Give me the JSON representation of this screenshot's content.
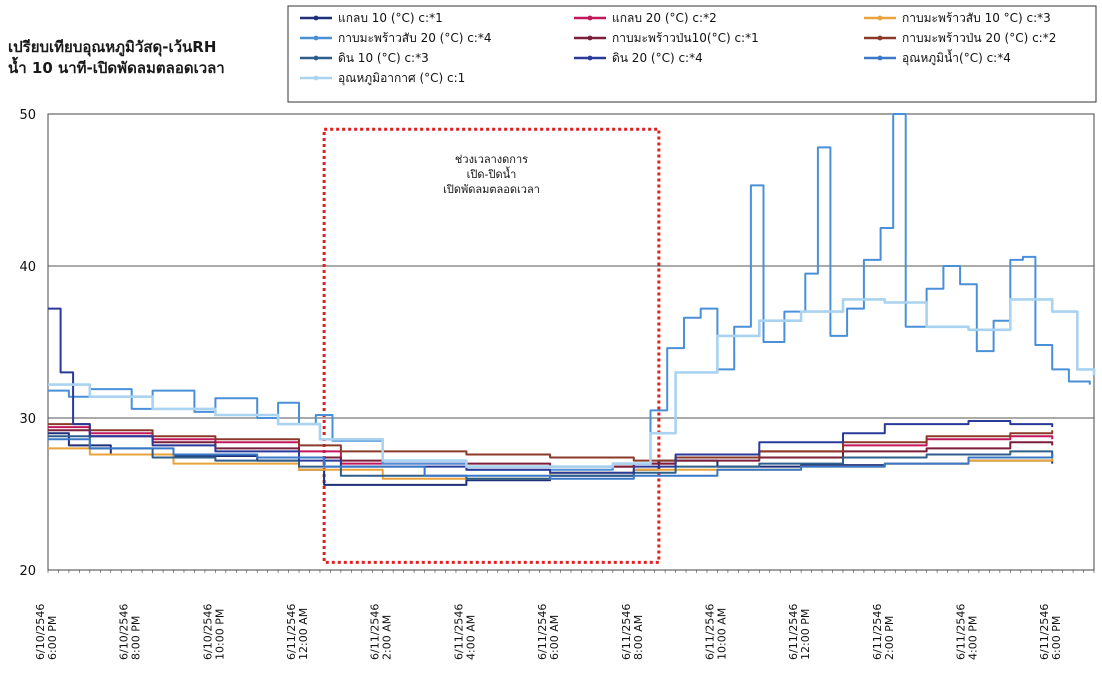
{
  "chart_data": {
    "type": "line",
    "title": [
      "เปรียบเทียบอุณหภูมิวัสดุ-เว้นRH",
      "น้ำ 10 นาที-เปิดพัดลมตลอดเวลา"
    ],
    "ylim": [
      20,
      50
    ],
    "yticks": [
      20,
      30,
      40,
      50
    ],
    "grid": "horizontal",
    "legend_placement": "top",
    "x_labels": [
      [
        "6/10/2546",
        "6:00 PM"
      ],
      [
        "6/10/2546",
        "8:00 PM"
      ],
      [
        "6/10/2546",
        "10:00 PM"
      ],
      [
        "6/11/2546",
        "12:00 AM"
      ],
      [
        "6/11/2546",
        "2:00 AM"
      ],
      [
        "6/11/2546",
        "4:00 AM"
      ],
      [
        "6/11/2546",
        "6:00 AM"
      ],
      [
        "6/11/2546",
        "8:00 AM"
      ],
      [
        "6/11/2546",
        "10:00 AM"
      ],
      [
        "6/11/2546",
        "12:00 PM"
      ],
      [
        "6/11/2546",
        "2:00 PM"
      ],
      [
        "6/11/2546",
        "4:00 PM"
      ],
      [
        "6/11/2546",
        "6:00 PM"
      ]
    ],
    "x_hours": [
      0,
      2,
      4,
      6,
      8,
      10,
      12,
      14,
      16,
      18,
      20,
      22,
      24
    ],
    "annotation": {
      "text": [
        "ช่วงเวลางดการ",
        "เปิด-ปิดน้ำ",
        "เปิดพัดลมตลอดเวลา"
      ],
      "x_range": [
        6.6,
        14.6
      ],
      "y_range": [
        20.5,
        49
      ],
      "color": "#e02020"
    },
    "series": [
      {
        "name": "แกลบ 10 (°C) c:*1",
        "color": "#1f2f7a",
        "points": [
          [
            0,
            29.0
          ],
          [
            0.5,
            28.2
          ],
          [
            1.5,
            27.6
          ],
          [
            3,
            27.5
          ],
          [
            5,
            27.2
          ],
          [
            6,
            26.6
          ],
          [
            6.6,
            25.6
          ],
          [
            8,
            25.6
          ],
          [
            10,
            25.9
          ],
          [
            12,
            26.2
          ],
          [
            14,
            26.6
          ],
          [
            14.6,
            27.2
          ],
          [
            16,
            26.8
          ],
          [
            18,
            26.9
          ],
          [
            20,
            27.0
          ],
          [
            22,
            27.2
          ],
          [
            24,
            27.0
          ]
        ]
      },
      {
        "name": "แกลบ 20 (°C) c:*2",
        "color": "#c2185b",
        "points": [
          [
            0,
            29.4
          ],
          [
            1,
            29.0
          ],
          [
            2.5,
            28.6
          ],
          [
            4,
            28.4
          ],
          [
            6,
            27.8
          ],
          [
            7,
            27.0
          ],
          [
            10,
            26.8
          ],
          [
            12,
            26.8
          ],
          [
            14,
            27.0
          ],
          [
            15,
            27.4
          ],
          [
            17,
            27.8
          ],
          [
            19,
            28.2
          ],
          [
            21,
            28.6
          ],
          [
            23,
            28.8
          ],
          [
            24,
            28.6
          ]
        ]
      },
      {
        "name": "กาบมะพร้าวสับ 10 °C) c:*3",
        "color": "#e8a33a",
        "points": [
          [
            0,
            28.0
          ],
          [
            1,
            27.6
          ],
          [
            3,
            27.0
          ],
          [
            5,
            27.0
          ],
          [
            6,
            26.6
          ],
          [
            8,
            26.0
          ],
          [
            10,
            26.0
          ],
          [
            12,
            26.4
          ],
          [
            14,
            26.6
          ],
          [
            16,
            26.6
          ],
          [
            18,
            26.8
          ],
          [
            20,
            27.0
          ],
          [
            22,
            27.2
          ],
          [
            24,
            27.6
          ]
        ]
      },
      {
        "name": "กาบมะพร้าวสับ 20 (°C) c:*4",
        "color": "#4a90d9",
        "points": [
          [
            0,
            31.8
          ],
          [
            0.5,
            31.4
          ],
          [
            1,
            31.9
          ],
          [
            2,
            30.6
          ],
          [
            2.5,
            31.8
          ],
          [
            3.5,
            30.4
          ],
          [
            4,
            31.3
          ],
          [
            5,
            30.0
          ],
          [
            5.5,
            31.0
          ],
          [
            6,
            29.6
          ],
          [
            6.4,
            30.2
          ],
          [
            6.8,
            28.5
          ],
          [
            8,
            27.0
          ],
          [
            10,
            26.6
          ],
          [
            12,
            26.6
          ],
          [
            13.5,
            27.0
          ],
          [
            14.4,
            30.5
          ],
          [
            14.8,
            34.6
          ],
          [
            15.2,
            36.6
          ],
          [
            15.6,
            37.2
          ],
          [
            16,
            33.2
          ],
          [
            16.4,
            36.0
          ],
          [
            16.8,
            45.3
          ],
          [
            17.1,
            35.0
          ],
          [
            17.6,
            37.0
          ],
          [
            18.1,
            39.5
          ],
          [
            18.4,
            47.8
          ],
          [
            18.7,
            35.4
          ],
          [
            19.1,
            37.2
          ],
          [
            19.5,
            40.4
          ],
          [
            19.9,
            42.5
          ],
          [
            20.2,
            50.0
          ],
          [
            20.5,
            36.0
          ],
          [
            21,
            38.5
          ],
          [
            21.4,
            40.0
          ],
          [
            21.8,
            38.8
          ],
          [
            22.2,
            34.4
          ],
          [
            22.6,
            36.4
          ],
          [
            23,
            40.4
          ],
          [
            23.3,
            40.6
          ],
          [
            23.6,
            34.8
          ],
          [
            24,
            33.2
          ],
          [
            24.4,
            32.4
          ],
          [
            24.9,
            32.2
          ]
        ]
      },
      {
        "name": "กาบมะพร้าวป่น10(°C) c:*1",
        "color": "#7b1f3a",
        "points": [
          [
            0,
            29.2
          ],
          [
            1,
            28.8
          ],
          [
            2.5,
            28.4
          ],
          [
            4,
            28.0
          ],
          [
            6,
            27.4
          ],
          [
            7,
            27.2
          ],
          [
            10,
            27.0
          ],
          [
            12,
            26.8
          ],
          [
            14,
            27.0
          ],
          [
            15,
            27.2
          ],
          [
            17,
            27.4
          ],
          [
            19,
            27.8
          ],
          [
            21,
            28.0
          ],
          [
            23,
            28.4
          ],
          [
            24,
            28.2
          ]
        ]
      },
      {
        "name": "กาบมะพร้าวป่น 20 (°C) c:*2",
        "color": "#8b3a2a",
        "points": [
          [
            0,
            29.6
          ],
          [
            1,
            29.2
          ],
          [
            2.5,
            28.8
          ],
          [
            4,
            28.6
          ],
          [
            6,
            28.2
          ],
          [
            7,
            27.8
          ],
          [
            10,
            27.6
          ],
          [
            12,
            27.4
          ],
          [
            14,
            27.2
          ],
          [
            15,
            27.4
          ],
          [
            17,
            27.8
          ],
          [
            19,
            28.4
          ],
          [
            21,
            28.8
          ],
          [
            23,
            29.0
          ],
          [
            24,
            29.2
          ]
        ]
      },
      {
        "name": "ดิน 10 (°C) c:*3",
        "color": "#2d5f8a",
        "points": [
          [
            0,
            28.8
          ],
          [
            1,
            28.0
          ],
          [
            2.5,
            27.4
          ],
          [
            4,
            27.2
          ],
          [
            6,
            26.8
          ],
          [
            7,
            26.2
          ],
          [
            10,
            26.0
          ],
          [
            12,
            26.2
          ],
          [
            14,
            26.4
          ],
          [
            15,
            26.8
          ],
          [
            17,
            27.0
          ],
          [
            19,
            27.4
          ],
          [
            21,
            27.6
          ],
          [
            23,
            27.8
          ],
          [
            24,
            27.4
          ]
        ]
      },
      {
        "name": "ดิน 20 (°C) c:*4",
        "color": "#2a3a9a",
        "points": [
          [
            0,
            37.2
          ],
          [
            0.3,
            33.0
          ],
          [
            0.6,
            29.6
          ],
          [
            1,
            28.8
          ],
          [
            2.5,
            28.2
          ],
          [
            4,
            27.8
          ],
          [
            6,
            27.2
          ],
          [
            7,
            26.8
          ],
          [
            10,
            26.6
          ],
          [
            12,
            26.4
          ],
          [
            14,
            26.8
          ],
          [
            15,
            27.6
          ],
          [
            17,
            28.4
          ],
          [
            19,
            29.0
          ],
          [
            20,
            29.6
          ],
          [
            22,
            29.8
          ],
          [
            23,
            29.6
          ],
          [
            24,
            29.4
          ]
        ]
      },
      {
        "name": "อุณหภูมิน้ำ(°C) c:*4",
        "color": "#3a78c8",
        "points": [
          [
            0,
            28.6
          ],
          [
            1,
            28.0
          ],
          [
            3,
            27.6
          ],
          [
            5,
            27.4
          ],
          [
            6.6,
            26.8
          ],
          [
            9,
            26.2
          ],
          [
            12,
            26.0
          ],
          [
            14,
            26.2
          ],
          [
            16,
            26.6
          ],
          [
            18,
            26.8
          ],
          [
            20,
            27.0
          ],
          [
            22,
            27.4
          ],
          [
            24,
            27.6
          ]
        ]
      },
      {
        "name": "อุณหภูมิอากาศ (°C) c:1",
        "color": "#a9d3f0",
        "points": [
          [
            0,
            32.2
          ],
          [
            1,
            31.4
          ],
          [
            2.5,
            30.6
          ],
          [
            4,
            30.2
          ],
          [
            5.5,
            29.6
          ],
          [
            6.5,
            28.6
          ],
          [
            8,
            27.2
          ],
          [
            10,
            26.8
          ],
          [
            12,
            26.8
          ],
          [
            13.5,
            27.0
          ],
          [
            14.4,
            29.0
          ],
          [
            15,
            33.0
          ],
          [
            16,
            35.4
          ],
          [
            17,
            36.4
          ],
          [
            18,
            37.0
          ],
          [
            19,
            37.8
          ],
          [
            20,
            37.6
          ],
          [
            21,
            36.0
          ],
          [
            22,
            35.8
          ],
          [
            23,
            37.8
          ],
          [
            24,
            37.0
          ],
          [
            24.6,
            33.2
          ],
          [
            25,
            32.8
          ]
        ]
      }
    ]
  }
}
